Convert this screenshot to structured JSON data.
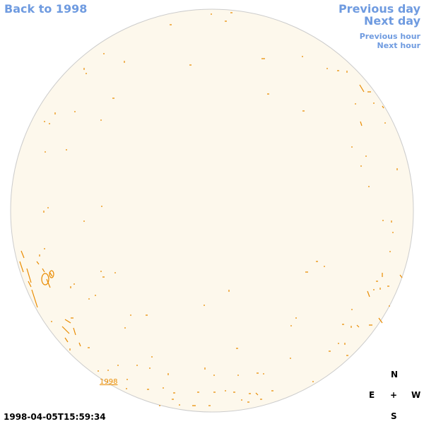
{
  "nav": {
    "back": "Back to 1998",
    "previous_day": "Previous day",
    "next_day": "Next day",
    "previous_hour": "Previous hour",
    "next_hour": "Next hour"
  },
  "disk": {
    "year_label": "1998"
  },
  "timestamp": "1998-04-05T15:59:34",
  "compass": {
    "north": "N",
    "east": "E",
    "center": "+",
    "west": "W",
    "south": "S"
  }
}
